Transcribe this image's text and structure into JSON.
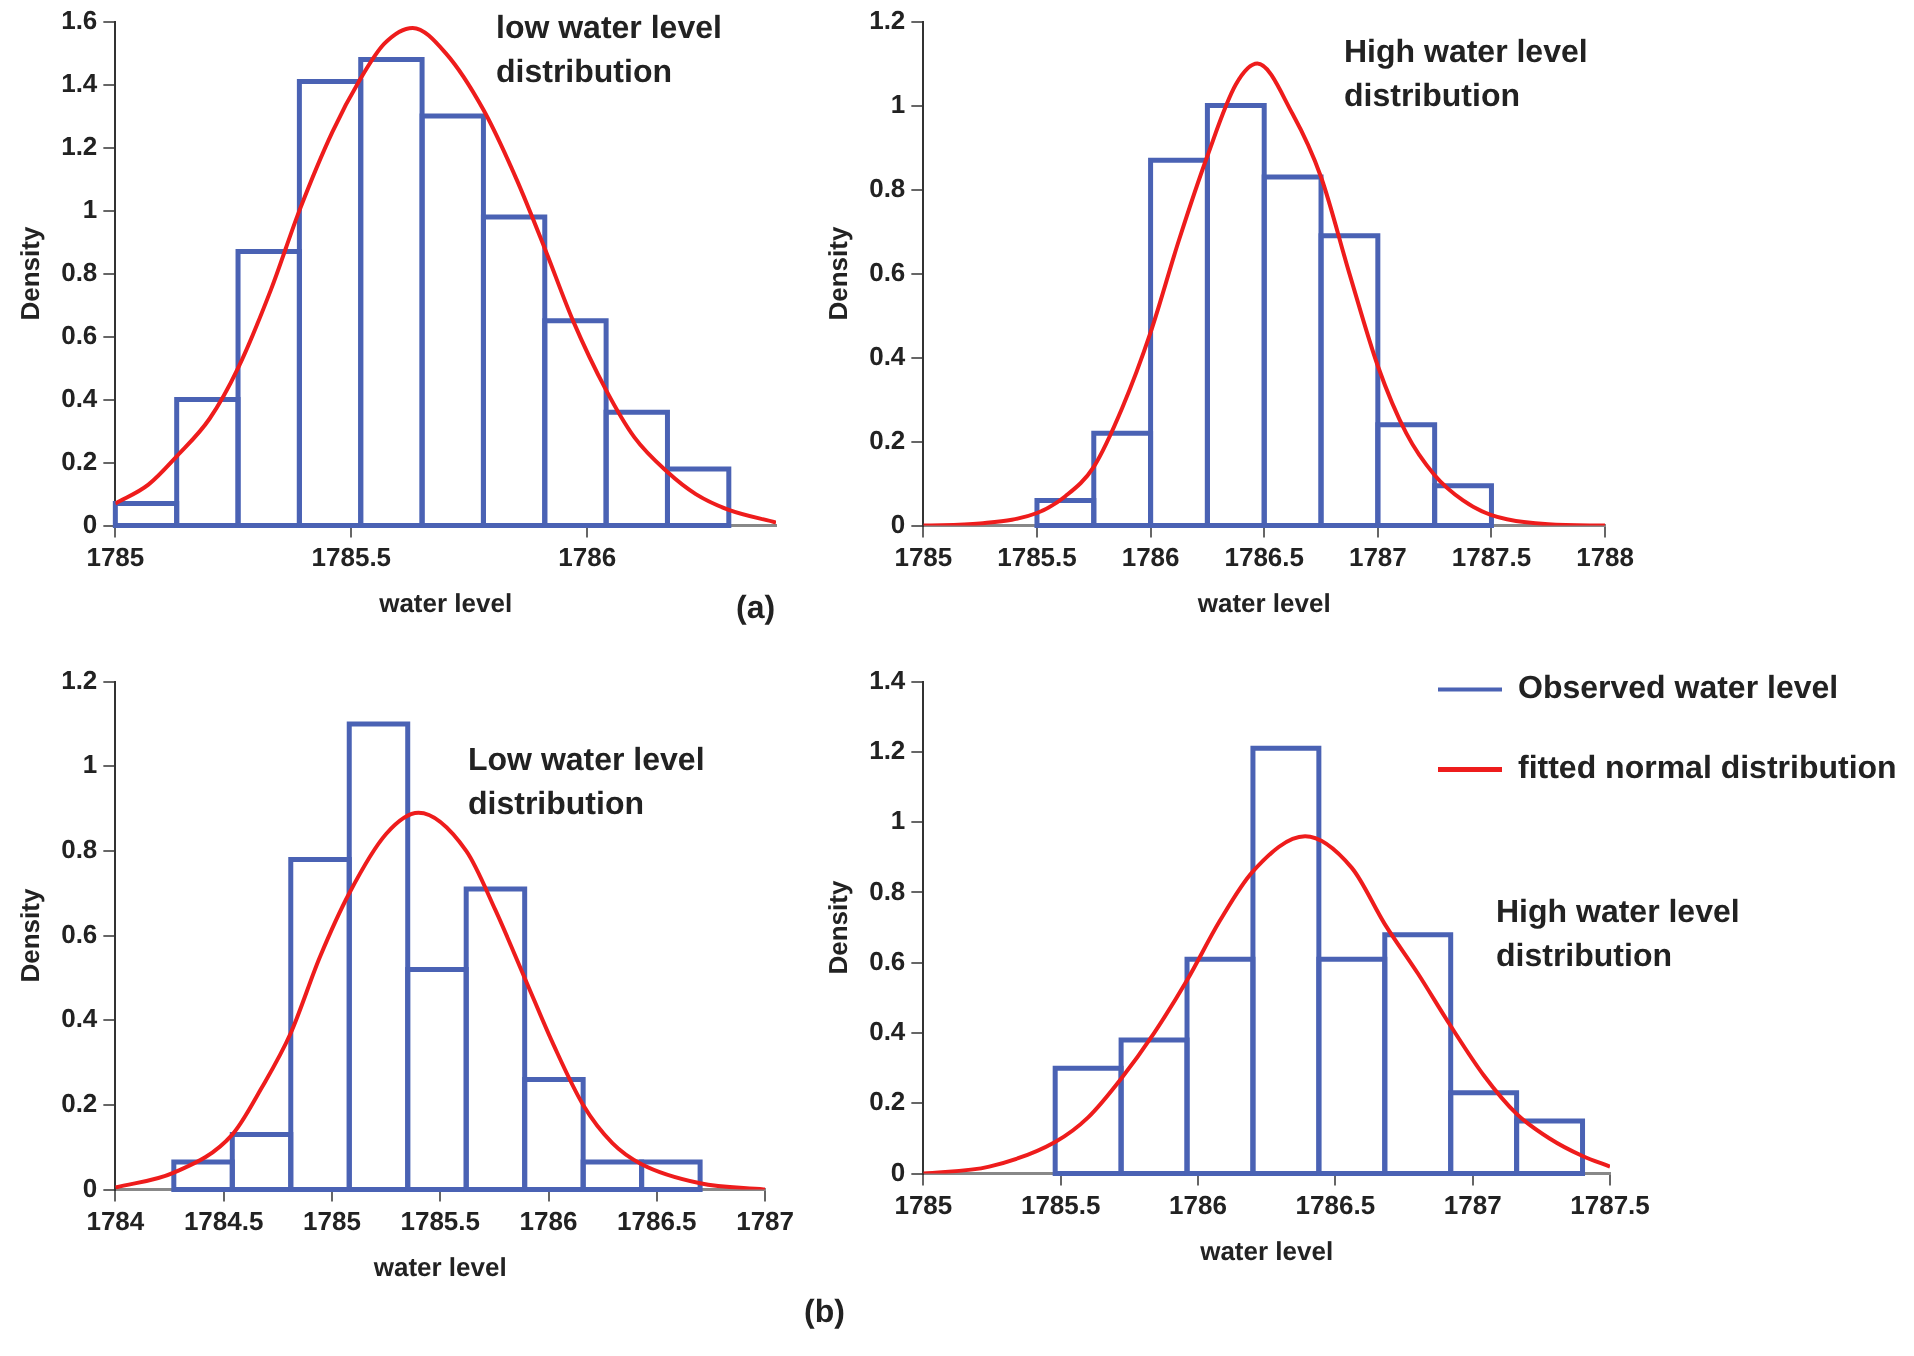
{
  "chart_data": [
    {
      "type": "histogram",
      "xlabel": "water level",
      "ylabel": "Density",
      "xlim": [
        1785,
        1786.4
      ],
      "xticks": [
        1785,
        1785.5,
        1786
      ],
      "ylim": [
        0,
        1.6
      ],
      "yticks": [
        0,
        0.2,
        0.4,
        0.6,
        0.8,
        1,
        1.2,
        1.4,
        1.6
      ],
      "grid": false,
      "annotations": [
        "low water level distribution",
        "(a)"
      ],
      "series": [
        {
          "type": "histogram",
          "color": "#4a62b4",
          "bins": [
            1785,
            1785.13,
            1785.26,
            1785.39,
            1785.52,
            1785.65,
            1785.78,
            1785.91,
            1786.04,
            1786.17,
            1786.3
          ],
          "values": [
            0.07,
            0.4,
            0.87,
            1.41,
            1.48,
            1.3,
            0.98,
            0.65,
            0.36,
            0.18
          ]
        },
        {
          "type": "line",
          "color": "#ee1c1c",
          "x": [
            1785,
            1785.07,
            1785.13,
            1785.2,
            1785.26,
            1785.33,
            1785.39,
            1785.46,
            1785.52,
            1785.57,
            1785.63,
            1785.7,
            1785.78,
            1785.85,
            1785.91,
            1785.97,
            1786.04,
            1786.1,
            1786.17,
            1786.23,
            1786.3,
            1786.4
          ],
          "values": [
            0.07,
            0.13,
            0.22,
            0.34,
            0.5,
            0.75,
            1.0,
            1.25,
            1.42,
            1.53,
            1.58,
            1.5,
            1.32,
            1.1,
            0.88,
            0.65,
            0.43,
            0.28,
            0.17,
            0.1,
            0.05,
            0.01
          ]
        }
      ]
    },
    {
      "type": "histogram",
      "xlabel": "water level",
      "ylabel": "Density",
      "xlim": [
        1785,
        1788
      ],
      "xticks": [
        1785,
        1785.5,
        1786,
        1786.5,
        1787,
        1787.5,
        1788
      ],
      "ylim": [
        0,
        1.2
      ],
      "yticks": [
        0,
        0.2,
        0.4,
        0.6,
        0.8,
        1,
        1.2
      ],
      "grid": false,
      "annotations": [
        "High water level distribution"
      ],
      "series": [
        {
          "type": "histogram",
          "color": "#4a62b4",
          "bins": [
            1785.5,
            1785.75,
            1786,
            1786.25,
            1786.5,
            1786.75,
            1787,
            1787.25,
            1787.5
          ],
          "values": [
            0.06,
            0.22,
            0.87,
            1.0,
            0.83,
            0.69,
            0.24,
            0.095
          ]
        },
        {
          "type": "line",
          "color": "#ee1c1c",
          "x": [
            1785,
            1785.25,
            1785.5,
            1785.625,
            1785.75,
            1785.875,
            1786,
            1786.125,
            1786.25,
            1786.375,
            1786.47,
            1786.625,
            1786.75,
            1786.875,
            1787,
            1787.125,
            1787.25,
            1787.375,
            1787.5,
            1787.75,
            1788
          ],
          "values": [
            0,
            0.005,
            0.03,
            0.07,
            0.14,
            0.28,
            0.46,
            0.68,
            0.88,
            1.05,
            1.1,
            0.98,
            0.83,
            0.6,
            0.38,
            0.22,
            0.12,
            0.06,
            0.025,
            0.003,
            0
          ]
        }
      ]
    },
    {
      "type": "histogram",
      "xlabel": "water level",
      "ylabel": "Density",
      "xlim": [
        1784,
        1787
      ],
      "xticks": [
        1784,
        1784.5,
        1785,
        1785.5,
        1786,
        1786.5,
        1787
      ],
      "ylim": [
        0,
        1.2
      ],
      "yticks": [
        0,
        0.2,
        0.4,
        0.6,
        0.8,
        1,
        1.2
      ],
      "grid": false,
      "annotations": [
        "Low water level distribution"
      ],
      "series": [
        {
          "type": "histogram",
          "color": "#4a62b4",
          "bins": [
            1784.27,
            1784.54,
            1784.81,
            1785.08,
            1785.35,
            1785.62,
            1785.89,
            1786.16,
            1786.43,
            1786.7
          ],
          "values": [
            0.065,
            0.13,
            0.78,
            1.1,
            0.52,
            0.71,
            0.26,
            0.065,
            0.065
          ]
        },
        {
          "type": "line",
          "color": "#ee1c1c",
          "x": [
            1784,
            1784.27,
            1784.54,
            1784.675,
            1784.81,
            1784.945,
            1785.08,
            1785.25,
            1785.4,
            1785.62,
            1785.755,
            1785.89,
            1786.025,
            1786.16,
            1786.295,
            1786.43,
            1786.7,
            1787
          ],
          "values": [
            0.005,
            0.04,
            0.13,
            0.24,
            0.37,
            0.55,
            0.7,
            0.84,
            0.89,
            0.8,
            0.66,
            0.5,
            0.34,
            0.2,
            0.11,
            0.06,
            0.015,
            0
          ]
        }
      ]
    },
    {
      "type": "histogram",
      "xlabel": "water level",
      "ylabel": "Density",
      "xlim": [
        1785,
        1787.5
      ],
      "xticks": [
        1785,
        1785.5,
        1786,
        1786.5,
        1787,
        1787.5
      ],
      "ylim": [
        0,
        1.4
      ],
      "yticks": [
        0,
        0.2,
        0.4,
        0.6,
        0.8,
        1,
        1.2,
        1.4
      ],
      "grid": false,
      "legend": "top right",
      "annotations": [
        "High water level distribution",
        "(b)"
      ],
      "series": [
        {
          "type": "histogram",
          "name": "Observed water level",
          "color": "#4a62b4",
          "bins": [
            1785.48,
            1785.72,
            1785.96,
            1786.2,
            1786.44,
            1786.68,
            1786.92,
            1787.16,
            1787.4
          ],
          "values": [
            0.3,
            0.38,
            0.61,
            1.21,
            0.61,
            0.68,
            0.23,
            0.15
          ]
        },
        {
          "type": "line",
          "name": "fitted normal distribution",
          "color": "#ee1c1c",
          "x": [
            1785,
            1785.24,
            1785.48,
            1785.6,
            1785.72,
            1785.84,
            1785.96,
            1786.08,
            1786.2,
            1786.39,
            1786.56,
            1786.68,
            1786.8,
            1786.92,
            1787.04,
            1787.16,
            1787.28,
            1787.4,
            1787.5
          ],
          "values": [
            0,
            0.02,
            0.09,
            0.16,
            0.27,
            0.4,
            0.55,
            0.72,
            0.86,
            0.96,
            0.87,
            0.71,
            0.57,
            0.42,
            0.28,
            0.17,
            0.1,
            0.05,
            0.02
          ]
        }
      ]
    }
  ]
}
